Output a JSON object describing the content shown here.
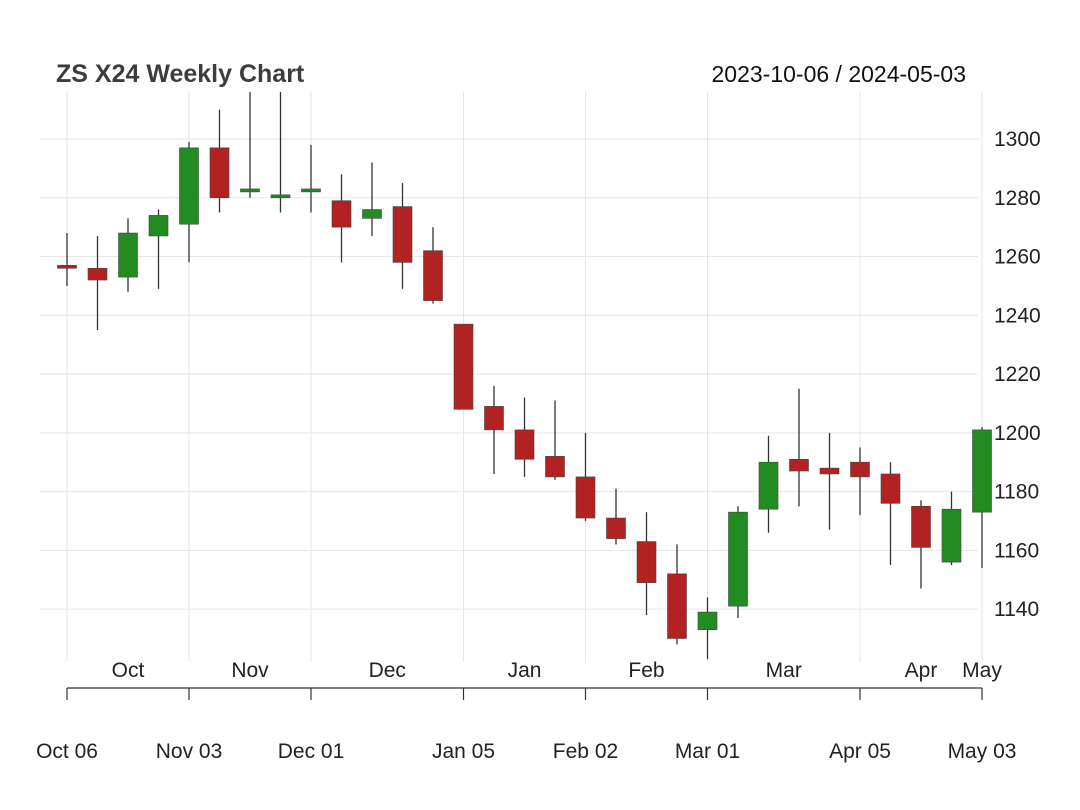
{
  "chart_data": {
    "type": "candlestick",
    "title": "ZS X24 Weekly Chart",
    "date_range": "2023-10-06 / 2024-05-03",
    "colors": {
      "up": "#228b22",
      "down": "#b22222",
      "grid": "#e6e6e6",
      "wick": "#333333"
    },
    "ylim": [
      1122,
      1316
    ],
    "y_ticks": [
      1140,
      1160,
      1180,
      1200,
      1220,
      1240,
      1260,
      1280,
      1300
    ],
    "month_labels": [
      {
        "label": "Oct",
        "bar": 2
      },
      {
        "label": "Nov",
        "bar": 6
      },
      {
        "label": "Dec",
        "bar": 10.5
      },
      {
        "label": "Jan",
        "bar": 15
      },
      {
        "label": "Feb",
        "bar": 19
      },
      {
        "label": "Mar",
        "bar": 23.5
      },
      {
        "label": "Apr",
        "bar": 28
      },
      {
        "label": "May",
        "bar": 30
      }
    ],
    "month_gridlines": [
      0,
      4,
      8,
      13,
      17,
      21,
      26,
      30
    ],
    "x_ticks": [
      {
        "label": "Oct 06",
        "bar": 0
      },
      {
        "label": "Nov 03",
        "bar": 4
      },
      {
        "label": "Dec 01",
        "bar": 8
      },
      {
        "label": "Jan 05",
        "bar": 13
      },
      {
        "label": "Feb 02",
        "bar": 17
      },
      {
        "label": "Mar 01",
        "bar": 21
      },
      {
        "label": "Apr 05",
        "bar": 26
      },
      {
        "label": "May 03",
        "bar": 30
      }
    ],
    "candles": [
      {
        "date": "2023-10-06",
        "open": 1257,
        "high": 1268,
        "low": 1250,
        "close": 1256
      },
      {
        "date": "2023-10-13",
        "open": 1256,
        "high": 1267,
        "low": 1235,
        "close": 1252
      },
      {
        "date": "2023-10-20",
        "open": 1253,
        "high": 1273,
        "low": 1248,
        "close": 1268
      },
      {
        "date": "2023-10-27",
        "open": 1267,
        "high": 1276,
        "low": 1249,
        "close": 1274
      },
      {
        "date": "2023-11-03",
        "open": 1271,
        "high": 1299,
        "low": 1258,
        "close": 1297
      },
      {
        "date": "2023-11-10",
        "open": 1297,
        "high": 1310,
        "low": 1275,
        "close": 1280
      },
      {
        "date": "2023-11-17",
        "open": 1282,
        "high": 1316,
        "low": 1280,
        "close": 1283
      },
      {
        "date": "2023-11-24",
        "open": 1280,
        "high": 1316,
        "low": 1275,
        "close": 1281
      },
      {
        "date": "2023-12-01",
        "open": 1282,
        "high": 1298,
        "low": 1275,
        "close": 1283
      },
      {
        "date": "2023-12-08",
        "open": 1279,
        "high": 1288,
        "low": 1258,
        "close": 1270
      },
      {
        "date": "2023-12-15",
        "open": 1273,
        "high": 1292,
        "low": 1267,
        "close": 1276
      },
      {
        "date": "2023-12-22",
        "open": 1277,
        "high": 1285,
        "low": 1249,
        "close": 1258
      },
      {
        "date": "2023-12-29",
        "open": 1262,
        "high": 1270,
        "low": 1244,
        "close": 1245
      },
      {
        "date": "2024-01-05",
        "open": 1237,
        "high": 1237,
        "low": 1208,
        "close": 1208
      },
      {
        "date": "2024-01-12",
        "open": 1209,
        "high": 1216,
        "low": 1186,
        "close": 1201
      },
      {
        "date": "2024-01-19",
        "open": 1201,
        "high": 1212,
        "low": 1185,
        "close": 1191
      },
      {
        "date": "2024-01-26",
        "open": 1192,
        "high": 1211,
        "low": 1184,
        "close": 1185
      },
      {
        "date": "2024-02-02",
        "open": 1185,
        "high": 1200,
        "low": 1170,
        "close": 1171
      },
      {
        "date": "2024-02-09",
        "open": 1171,
        "high": 1181,
        "low": 1162,
        "close": 1164
      },
      {
        "date": "2024-02-16",
        "open": 1163,
        "high": 1173,
        "low": 1138,
        "close": 1149
      },
      {
        "date": "2024-02-23",
        "open": 1152,
        "high": 1162,
        "low": 1128,
        "close": 1130
      },
      {
        "date": "2024-03-01",
        "open": 1133,
        "high": 1144,
        "low": 1123,
        "close": 1139
      },
      {
        "date": "2024-03-08",
        "open": 1141,
        "high": 1175,
        "low": 1137,
        "close": 1173
      },
      {
        "date": "2024-03-15",
        "open": 1174,
        "high": 1199,
        "low": 1166,
        "close": 1190
      },
      {
        "date": "2024-03-22",
        "open": 1191,
        "high": 1215,
        "low": 1175,
        "close": 1187
      },
      {
        "date": "2024-03-29",
        "open": 1188,
        "high": 1200,
        "low": 1167,
        "close": 1186
      },
      {
        "date": "2024-04-05",
        "open": 1190,
        "high": 1195,
        "low": 1172,
        "close": 1185
      },
      {
        "date": "2024-04-12",
        "open": 1186,
        "high": 1190,
        "low": 1155,
        "close": 1176
      },
      {
        "date": "2024-04-19",
        "open": 1175,
        "high": 1177,
        "low": 1147,
        "close": 1161
      },
      {
        "date": "2024-04-26",
        "open": 1156,
        "high": 1180,
        "low": 1155,
        "close": 1174
      },
      {
        "date": "2024-05-03",
        "open": 1173,
        "high": 1202,
        "low": 1154,
        "close": 1201
      }
    ]
  }
}
